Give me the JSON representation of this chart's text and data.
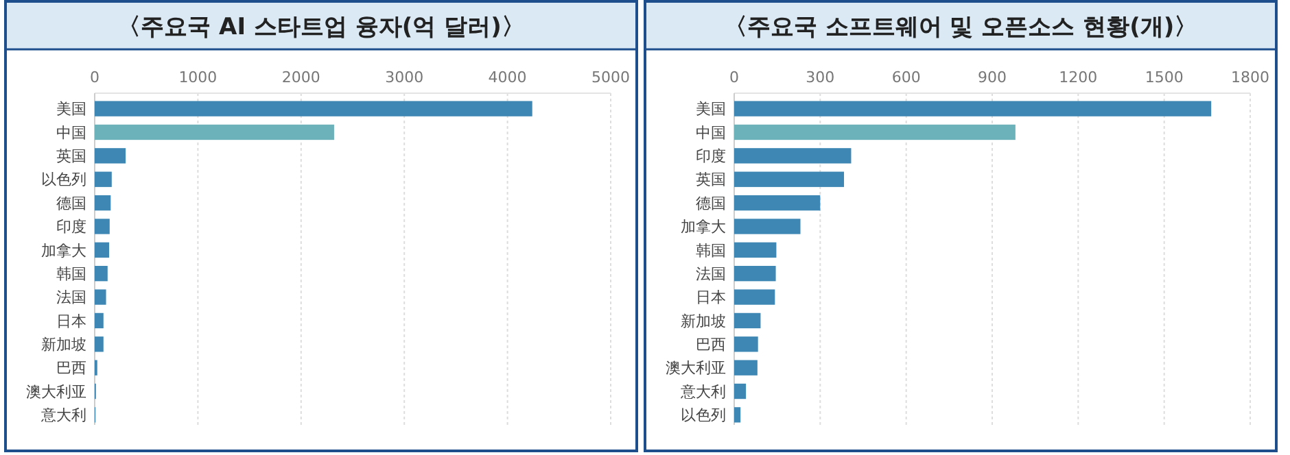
{
  "chart_data": [
    {
      "type": "bar",
      "orientation": "horizontal",
      "title": "〈주요국  AI 스타트업 융자(억 달러)〉",
      "categories": [
        "美国",
        "中国",
        "英国",
        "以色列",
        "德国",
        "印度",
        "加拿大",
        "韩国",
        "法国",
        "日本",
        "新加坡",
        "巴西",
        "澳大利亚",
        "意大利"
      ],
      "values": [
        4240,
        2320,
        300,
        165,
        155,
        145,
        140,
        125,
        110,
        85,
        85,
        25,
        12,
        8
      ],
      "colors": [
        "#3e87b4",
        "#6cb2ba",
        "#3e87b4",
        "#3e87b4",
        "#3e87b4",
        "#3e87b4",
        "#3e87b4",
        "#3e87b4",
        "#3e87b4",
        "#3e87b4",
        "#3e87b4",
        "#3e87b4",
        "#3e87b4",
        "#3e87b4"
      ],
      "xlim": [
        0,
        5000
      ],
      "xticks": [
        0,
        1000,
        2000,
        3000,
        4000,
        5000
      ],
      "grid": "x"
    },
    {
      "type": "bar",
      "orientation": "horizontal",
      "title": "〈주요국 소프트웨어 및 오픈소스 현황(개)〉",
      "categories": [
        "美国",
        "中国",
        "印度",
        "英国",
        "德国",
        "加拿大",
        "韩国",
        "法国",
        "日本",
        "新加坡",
        "巴西",
        "澳大利亚",
        "意大利",
        "以色列"
      ],
      "values": [
        1664,
        981,
        408,
        383,
        300,
        231,
        147,
        145,
        142,
        92,
        83,
        81,
        41,
        22
      ],
      "colors": [
        "#3e87b4",
        "#6cb2ba",
        "#3e87b4",
        "#3e87b4",
        "#3e87b4",
        "#3e87b4",
        "#3e87b4",
        "#3e87b4",
        "#3e87b4",
        "#3e87b4",
        "#3e87b4",
        "#3e87b4",
        "#3e87b4",
        "#3e87b4"
      ],
      "xlim": [
        0,
        1800
      ],
      "xticks": [
        0,
        300,
        600,
        900,
        1200,
        1500,
        1800
      ],
      "grid": "x"
    }
  ]
}
